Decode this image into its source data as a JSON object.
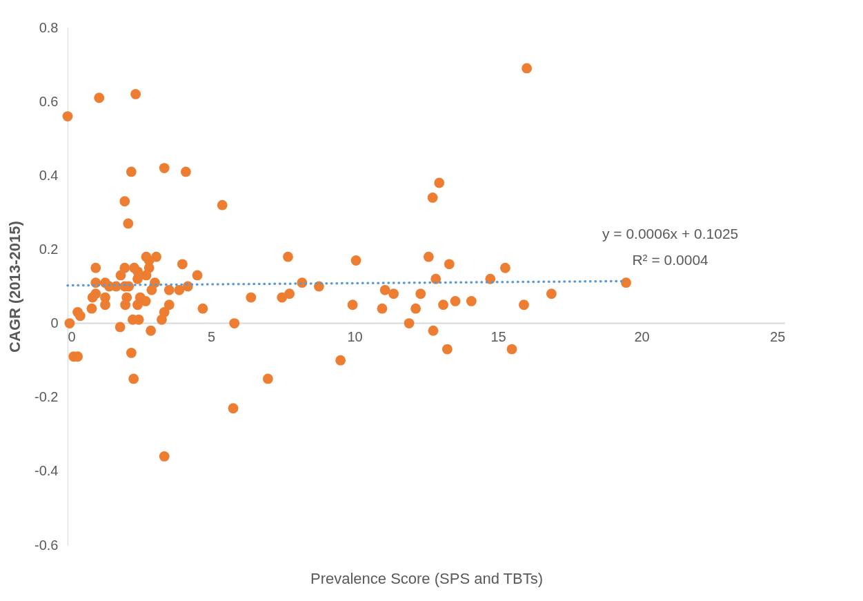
{
  "chart_data": {
    "type": "scatter",
    "xlabel": "Prevalence Score (SPS and TBTs)",
    "ylabel": "CAGR (2013-2015)",
    "xlim": [
      0,
      25
    ],
    "xticks": [
      0,
      5,
      10,
      15,
      20,
      25
    ],
    "ylim": [
      -0.6,
      0.8
    ],
    "yticks": [
      -0.6,
      -0.4,
      -0.2,
      0,
      0.2,
      0.4,
      0.6,
      0.8
    ],
    "grid": false,
    "marker": "circle",
    "annotations": [
      "y = 0.0006x + 0.1025",
      "R² = 0.0004"
    ],
    "series": [
      {
        "color": "#ed7d31",
        "x": [
          0,
          1.1,
          2.37,
          2.22,
          1.99,
          2.11,
          3.37,
          4.12,
          5.39,
          16.0,
          12.95,
          12.72,
          7.68,
          10.05,
          12.58,
          13.3,
          15.25,
          14.73,
          12.83,
          19.46,
          16.86,
          15.9,
          14.07,
          13.51,
          13.09,
          12.3,
          12.13,
          11.36,
          11.06,
          10.96,
          11.9,
          12.74,
          13.23,
          15.48,
          9.93,
          9.51,
          8.76,
          8.17,
          7.73,
          7.47,
          6.39,
          5.81,
          5.77,
          6.98,
          4.71,
          4.52,
          4.0,
          4.19,
          3.89,
          3.54,
          3.54,
          3.37,
          3.37,
          3.28,
          3.09,
          3.04,
          2.93,
          2.9,
          2.84,
          2.84,
          2.74,
          2.74,
          2.72,
          2.53,
          2.44,
          2.44,
          2.44,
          2.32,
          2.27,
          2.48,
          2.3,
          2.22,
          2.13,
          2.06,
          2.01,
          1.99,
          1.99,
          1.85,
          1.83,
          1.69,
          1.45,
          1.31,
          1.31,
          1.31,
          0.98,
          0.98,
          0.98,
          0.87,
          0.84,
          0.35,
          0.44,
          0.07,
          0.21,
          0.35
        ],
        "values": [
          0.56,
          0.61,
          0.62,
          0.41,
          0.33,
          0.27,
          0.42,
          0.41,
          0.32,
          0.69,
          0.38,
          0.34,
          0.18,
          0.17,
          0.18,
          0.16,
          0.15,
          0.12,
          0.12,
          0.11,
          0.08,
          0.05,
          0.06,
          0.06,
          0.05,
          0.08,
          0.04,
          0.08,
          0.09,
          0.04,
          0.0,
          -0.02,
          -0.07,
          -0.07,
          0.05,
          -0.1,
          0.1,
          0.11,
          0.08,
          0.07,
          0.07,
          0.0,
          -0.23,
          -0.15,
          0.04,
          0.13,
          0.16,
          0.1,
          0.09,
          0.05,
          0.09,
          -0.36,
          0.03,
          0.01,
          0.18,
          0.11,
          0.09,
          -0.02,
          0.15,
          0.17,
          0.18,
          0.13,
          0.06,
          0.07,
          0.12,
          0.14,
          0.05,
          0.15,
          0.01,
          0.01,
          -0.15,
          -0.08,
          0.1,
          0.07,
          0.05,
          0.15,
          0.1,
          0.13,
          -0.01,
          0.1,
          0.1,
          0.05,
          0.07,
          0.11,
          0.15,
          0.11,
          0.08,
          0.07,
          0.04,
          0.03,
          0.02,
          0.0,
          -0.09,
          -0.09
        ]
      },
      {
        "type": "line",
        "color": "#5b9bd5",
        "line_style": "dotted",
        "marker": "none",
        "x": [
          0,
          19.46
        ],
        "values": [
          0.1025,
          0.1142
        ]
      }
    ]
  }
}
